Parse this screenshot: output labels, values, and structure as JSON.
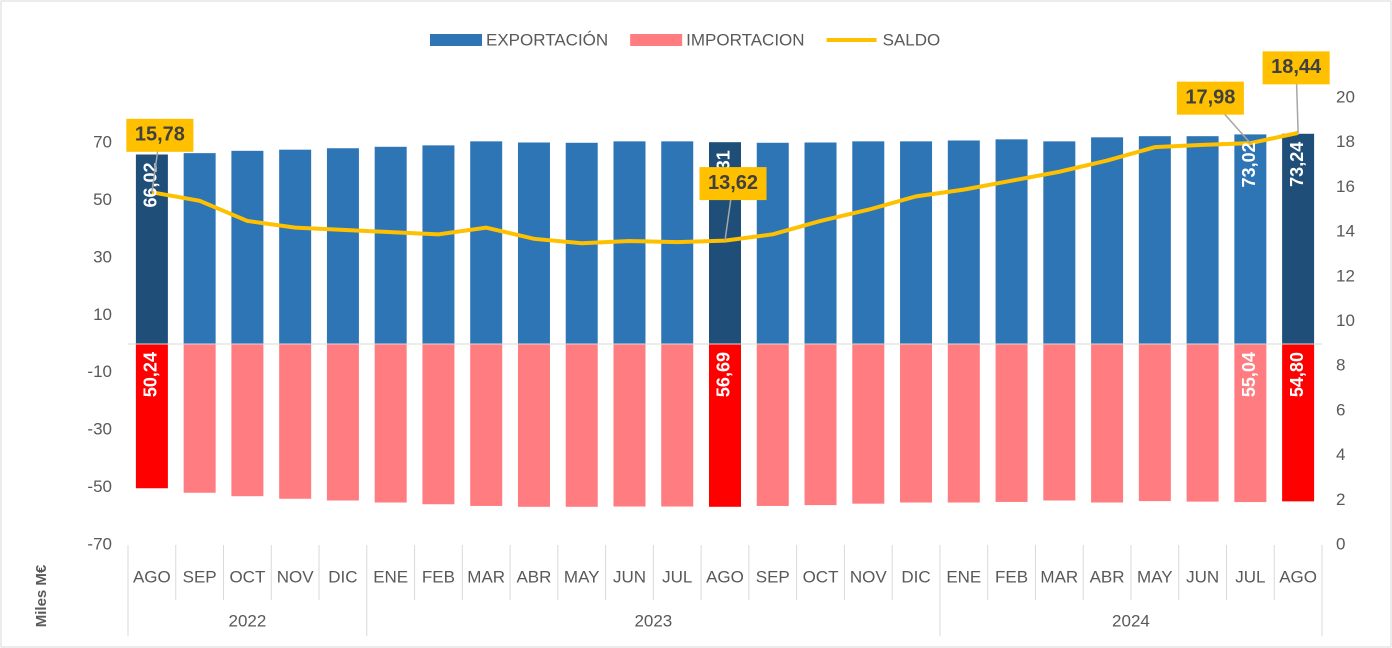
{
  "chart_data": {
    "type": "bar-line",
    "axis_label": "Miles M€",
    "categories": [
      "AGO",
      "SEP",
      "OCT",
      "NOV",
      "DIC",
      "ENE",
      "FEB",
      "MAR",
      "ABR",
      "MAY",
      "JUN",
      "JUL",
      "AGO",
      "SEP",
      "OCT",
      "NOV",
      "DIC",
      "ENE",
      "FEB",
      "MAR",
      "ABR",
      "MAY",
      "JUN",
      "JUL",
      "AGO"
    ],
    "years": [
      "2022",
      "2022",
      "2022",
      "2022",
      "2022",
      "2023",
      "2023",
      "2023",
      "2023",
      "2023",
      "2023",
      "2023",
      "2023",
      "2023",
      "2023",
      "2023",
      "2023",
      "2024",
      "2024",
      "2024",
      "2024",
      "2024",
      "2024",
      "2024",
      "2024"
    ],
    "ylim": [
      -70,
      85.7
    ],
    "yticks": [
      -70,
      -50,
      -30,
      -10,
      10,
      30,
      50,
      70
    ],
    "y2lim": [
      0,
      20
    ],
    "y2ticks": [
      0,
      2,
      4,
      6,
      8,
      10,
      12,
      14,
      16,
      18,
      20
    ],
    "series": [
      {
        "name": "EXPORTACIÓN",
        "kind": "bar",
        "color": "#2e75b6",
        "colors": [
          "#1f4e79",
          "#2e75b6",
          "#2e75b6",
          "#2e75b6",
          "#2e75b6",
          "#2e75b6",
          "#2e75b6",
          "#2e75b6",
          "#2e75b6",
          "#2e75b6",
          "#2e75b6",
          "#2e75b6",
          "#1f4e79",
          "#2e75b6",
          "#2e75b6",
          "#2e75b6",
          "#2e75b6",
          "#2e75b6",
          "#2e75b6",
          "#2e75b6",
          "#2e75b6",
          "#2e75b6",
          "#2e75b6",
          "#2e75b6",
          "#1f4e79"
        ],
        "values": [
          66.02,
          66.5,
          67.3,
          67.7,
          68.2,
          68.7,
          69.2,
          70.6,
          70.2,
          70.1,
          70.6,
          70.6,
          70.31,
          70.1,
          70.2,
          70.6,
          70.6,
          70.9,
          71.3,
          70.6,
          72.0,
          72.4,
          72.4,
          73.02,
          73.24
        ],
        "value_labels": [
          "66,02",
          null,
          null,
          null,
          null,
          null,
          null,
          null,
          null,
          null,
          null,
          null,
          "70,31",
          null,
          null,
          null,
          null,
          null,
          null,
          null,
          null,
          null,
          null,
          "73,02",
          "73,24"
        ]
      },
      {
        "name": "IMPORTACION",
        "kind": "bar",
        "color": "#ff7c80",
        "colors": [
          "#ff0000",
          "#ff7c80",
          "#ff7c80",
          "#ff7c80",
          "#ff7c80",
          "#ff7c80",
          "#ff7c80",
          "#ff7c80",
          "#ff7c80",
          "#ff7c80",
          "#ff7c80",
          "#ff7c80",
          "#ff0000",
          "#ff7c80",
          "#ff7c80",
          "#ff7c80",
          "#ff7c80",
          "#ff7c80",
          "#ff7c80",
          "#ff7c80",
          "#ff7c80",
          "#ff7c80",
          "#ff7c80",
          "#ff7c80",
          "#ff0000"
        ],
        "values": [
          -50.24,
          -51.8,
          -53.0,
          -53.9,
          -54.5,
          -55.2,
          -55.8,
          -56.4,
          -56.7,
          -56.7,
          -56.6,
          -56.6,
          -56.69,
          -56.4,
          -56.1,
          -55.6,
          -55.2,
          -55.2,
          -55.0,
          -54.5,
          -55.2,
          -54.7,
          -54.9,
          -55.04,
          -54.8
        ],
        "value_labels": [
          "50,24",
          null,
          null,
          null,
          null,
          null,
          null,
          null,
          null,
          null,
          null,
          null,
          "56,69",
          null,
          null,
          null,
          null,
          null,
          null,
          null,
          null,
          null,
          null,
          "55,04",
          "54,80"
        ]
      },
      {
        "name": "SALDO",
        "kind": "line",
        "axis": "y2",
        "color": "#ffc000",
        "values": [
          15.78,
          15.4,
          14.5,
          14.2,
          14.1,
          14.0,
          13.9,
          14.2,
          13.7,
          13.5,
          13.6,
          13.55,
          13.62,
          13.9,
          14.5,
          15.0,
          15.6,
          15.9,
          16.3,
          16.7,
          17.2,
          17.8,
          17.9,
          17.98,
          18.44
        ],
        "value_labels": [
          "15,78",
          null,
          null,
          null,
          null,
          null,
          null,
          null,
          null,
          null,
          null,
          null,
          "13,62",
          null,
          null,
          null,
          null,
          null,
          null,
          null,
          null,
          null,
          null,
          "17,98",
          "18,44"
        ]
      }
    ]
  }
}
